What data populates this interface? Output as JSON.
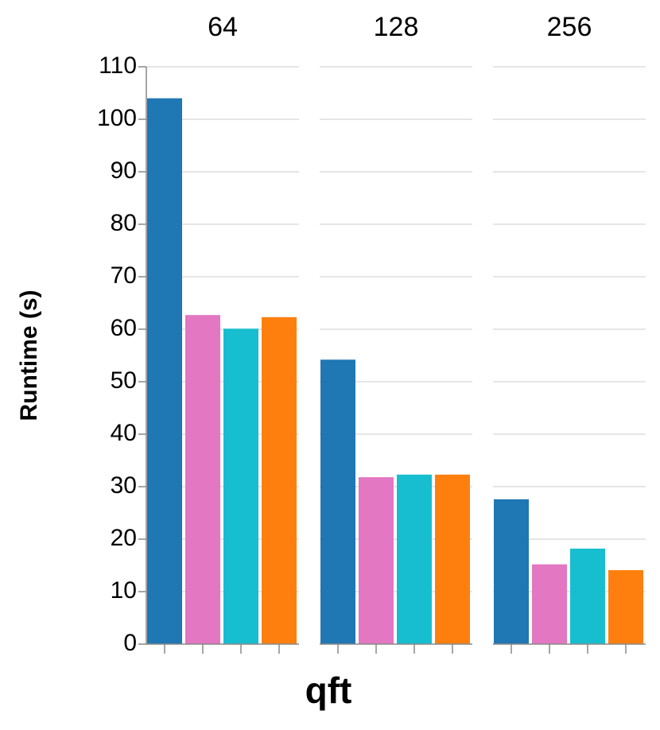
{
  "chart_data": {
    "type": "bar",
    "facets": [
      "64",
      "128",
      "256"
    ],
    "x_title": "qft",
    "y_title": "Runtime (s)",
    "series": [
      {
        "color": "#1f77b4",
        "values": [
          104,
          54.2,
          27.6
        ]
      },
      {
        "color": "#e377c2",
        "values": [
          62.7,
          31.8,
          15.2
        ]
      },
      {
        "color": "#17becf",
        "values": [
          60.1,
          32.3,
          18.2
        ]
      },
      {
        "color": "#ff7f0e",
        "values": [
          62.3,
          32.3,
          14.1
        ]
      }
    ],
    "ylim": [
      0,
      110
    ],
    "yticks": [
      0,
      10,
      20,
      30,
      40,
      50,
      60,
      70,
      80,
      90,
      100,
      110
    ],
    "grid": true
  }
}
